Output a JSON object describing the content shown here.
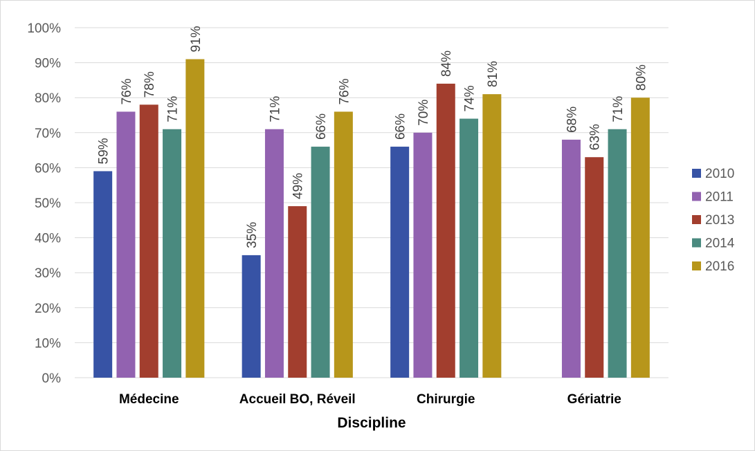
{
  "chart_data": {
    "type": "bar",
    "categories": [
      "Médecine",
      "Accueil BO, Réveil",
      "Chirurgie",
      "Gériatrie"
    ],
    "series": [
      {
        "name": "2010",
        "color": "#3753a5",
        "values": [
          59,
          35,
          66,
          null
        ]
      },
      {
        "name": "2011",
        "color": "#9262b0",
        "values": [
          76,
          71,
          70,
          68
        ]
      },
      {
        "name": "2013",
        "color": "#a23e2e",
        "values": [
          78,
          49,
          84,
          63
        ]
      },
      {
        "name": "2014",
        "color": "#4a8a7f",
        "values": [
          71,
          66,
          74,
          71
        ]
      },
      {
        "name": "2016",
        "color": "#b7961b",
        "values": [
          91,
          76,
          81,
          80
        ]
      }
    ],
    "xlabel": "Discipline",
    "ylabel": "",
    "ylim": [
      0,
      100
    ],
    "yticks": [
      "0%",
      "10%",
      "20%",
      "30%",
      "40%",
      "50%",
      "60%",
      "70%",
      "80%",
      "90%",
      "100%"
    ],
    "value_suffix": "%",
    "grid": true,
    "legend": "right"
  }
}
